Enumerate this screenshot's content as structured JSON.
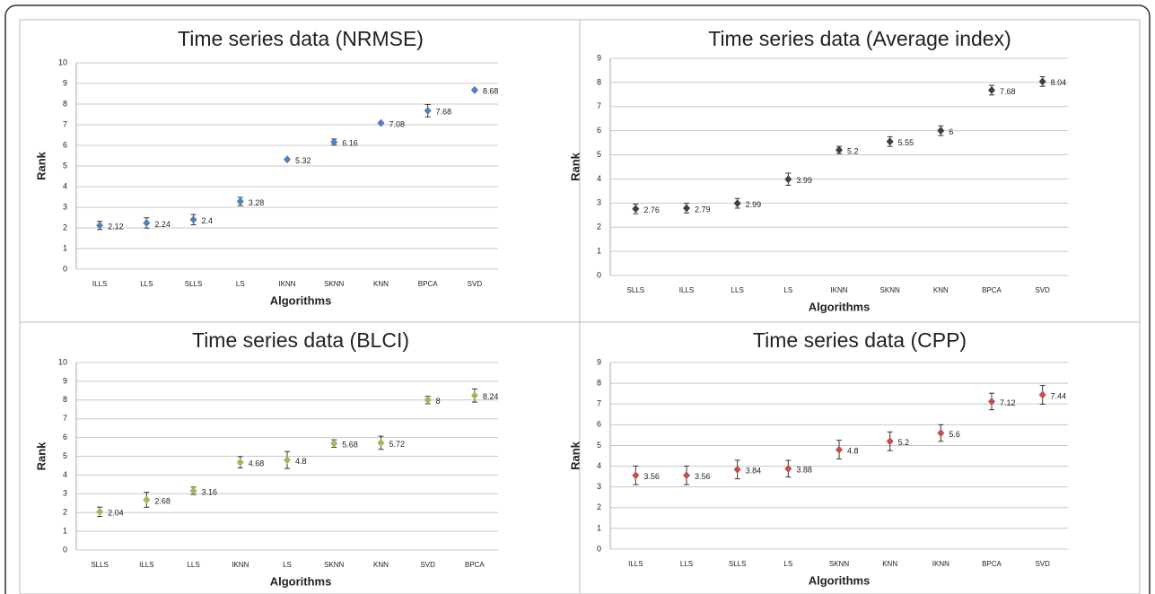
{
  "chart_data": [
    {
      "type": "errorbar",
      "title": "Time series data (NRMSE)",
      "xlabel": "Algorithms",
      "ylabel": "Rank",
      "color": "#4f81bd",
      "grid": true,
      "categories": [
        "ILLS",
        "LLS",
        "SLLS",
        "LS",
        "IKNN",
        "SKNN",
        "KNN",
        "BPCA",
        "SVD"
      ],
      "values": [
        2.12,
        2.24,
        2.4,
        3.28,
        5.32,
        6.16,
        7.08,
        7.68,
        8.68
      ],
      "errors": [
        0.2,
        0.25,
        0.25,
        0.2,
        0.05,
        0.15,
        0.05,
        0.3,
        0.05
      ],
      "ylim": [
        0,
        10
      ],
      "yticks": [
        0,
        1,
        2,
        3,
        4,
        5,
        6,
        7,
        8,
        9,
        10
      ]
    },
    {
      "type": "errorbar",
      "title": "Time series data (Average index)",
      "xlabel": "Algorithms",
      "ylabel": "Rank",
      "color": "#404040",
      "grid": true,
      "categories": [
        "SLLS",
        "ILLS",
        "LLS",
        "LS",
        "IKNN",
        "SKNN",
        "KNN",
        "BPCA",
        "SVD"
      ],
      "values": [
        2.76,
        2.79,
        2.99,
        3.99,
        5.2,
        5.55,
        6,
        7.68,
        8.04
      ],
      "errors": [
        0.2,
        0.2,
        0.2,
        0.25,
        0.15,
        0.2,
        0.2,
        0.2,
        0.2
      ],
      "ylim": [
        0,
        9
      ],
      "yticks": [
        0,
        1,
        2,
        3,
        4,
        5,
        6,
        7,
        8,
        9
      ]
    },
    {
      "type": "errorbar",
      "title": "Time series data (BLCI)",
      "xlabel": "Algorithms",
      "ylabel": "Rank",
      "color": "#9bbb59",
      "grid": true,
      "categories": [
        "SLLS",
        "ILLS",
        "LLS",
        "IKNN",
        "LS",
        "SKNN",
        "KNN",
        "SVD",
        "BPCA"
      ],
      "values": [
        2.04,
        2.68,
        3.16,
        4.68,
        4.8,
        5.68,
        5.72,
        8,
        8.24
      ],
      "errors": [
        0.25,
        0.4,
        0.2,
        0.3,
        0.45,
        0.2,
        0.35,
        0.2,
        0.35
      ],
      "ylim": [
        0,
        10
      ],
      "yticks": [
        0,
        1,
        2,
        3,
        4,
        5,
        6,
        7,
        8,
        9,
        10
      ]
    },
    {
      "type": "errorbar",
      "title": "Time series data (CPP)",
      "xlabel": "Algorithms",
      "ylabel": "Rank",
      "color": "#c0504d",
      "grid": true,
      "categories": [
        "ILLS",
        "LLS",
        "SLLS",
        "LS",
        "SKNN",
        "KNN",
        "IKNN",
        "BPCA",
        "SVD"
      ],
      "values": [
        3.56,
        3.56,
        3.84,
        3.88,
        4.8,
        5.2,
        5.6,
        7.12,
        7.44
      ],
      "errors": [
        0.45,
        0.45,
        0.45,
        0.4,
        0.45,
        0.45,
        0.4,
        0.4,
        0.45
      ],
      "ylim": [
        0,
        9
      ],
      "yticks": [
        0,
        1,
        2,
        3,
        4,
        5,
        6,
        7,
        8,
        9
      ]
    }
  ]
}
